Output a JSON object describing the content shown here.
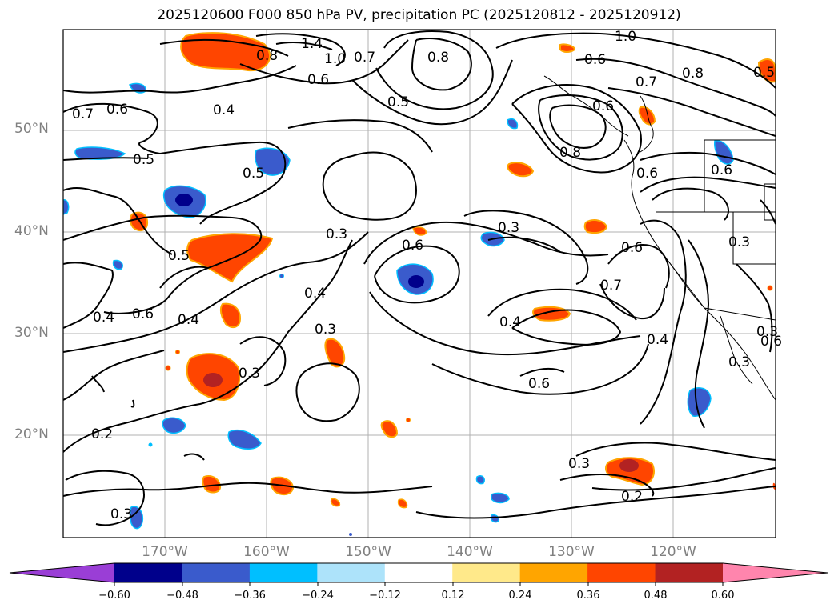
{
  "title": "2025120600 F000 850 hPa PV, precipitation PC (2025120812 - 2025120912)",
  "axes": {
    "lat_ticks": [
      "50°N",
      "40°N",
      "30°N",
      "20°N"
    ],
    "lon_ticks": [
      "170°W",
      "160°W",
      "150°W",
      "140°W",
      "130°W",
      "120°W"
    ]
  },
  "contour_labels": [
    "1.4",
    "0.8",
    "1.0",
    "0.7",
    "0.6",
    "0.8",
    "0.5",
    "1.0",
    "0.6",
    "0.7",
    "0.8",
    "0.5",
    "0.4",
    "0.6",
    "0.7",
    "0.6",
    "0.5",
    "0.5",
    "0.8",
    "0.6",
    "0.6",
    "0.3",
    "0.3",
    "0.6",
    "0.3",
    "0.5",
    "0.4",
    "0.6",
    "0.4",
    "0.7",
    "0.4",
    "0.6",
    "0.4",
    "0.3",
    "0.3",
    "0.4",
    "0.6",
    "0.6",
    "0.3",
    "0.3",
    "0.2",
    "0.3",
    "0.3",
    "0.2"
  ],
  "colorbar": {
    "ticks": [
      "−0.60",
      "−0.48",
      "−0.36",
      "−0.24",
      "−0.12",
      "0.12",
      "0.24",
      "0.36",
      "0.48",
      "0.60"
    ],
    "colors": [
      "#9a3ed6",
      "#00008b",
      "#3a5bcc",
      "#00bfff",
      "#ade3fa",
      "#ffffff",
      "#ffe98a",
      "#ffa500",
      "#ff4500",
      "#b22222",
      "#ff85ad"
    ]
  },
  "fill_colors": {
    "dark_blue": "#00008b",
    "blue": "#3a5bcc",
    "cyan": "#00bfff",
    "light_blue": "#ade3fa",
    "yellow": "#ffe98a",
    "orange": "#ffa500",
    "red_orange": "#ff4500",
    "dark_red": "#b22222"
  }
}
